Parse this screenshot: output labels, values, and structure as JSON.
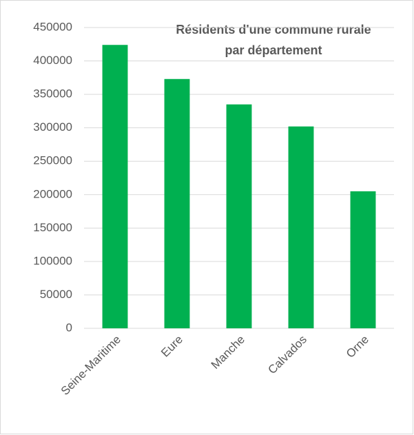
{
  "chart_data": {
    "type": "bar",
    "title": [
      "Résidents d'une commune rurale",
      "par département"
    ],
    "categories": [
      "Seine-Maritime",
      "Eure",
      "Manche",
      "Calvados",
      "Orne"
    ],
    "values": [
      424000,
      373000,
      335000,
      302000,
      205000
    ],
    "color": "#00b050",
    "ylim": [
      0,
      450000
    ],
    "yticks": [
      0,
      50000,
      100000,
      150000,
      200000,
      250000,
      300000,
      350000,
      400000,
      450000
    ],
    "grid": true
  }
}
